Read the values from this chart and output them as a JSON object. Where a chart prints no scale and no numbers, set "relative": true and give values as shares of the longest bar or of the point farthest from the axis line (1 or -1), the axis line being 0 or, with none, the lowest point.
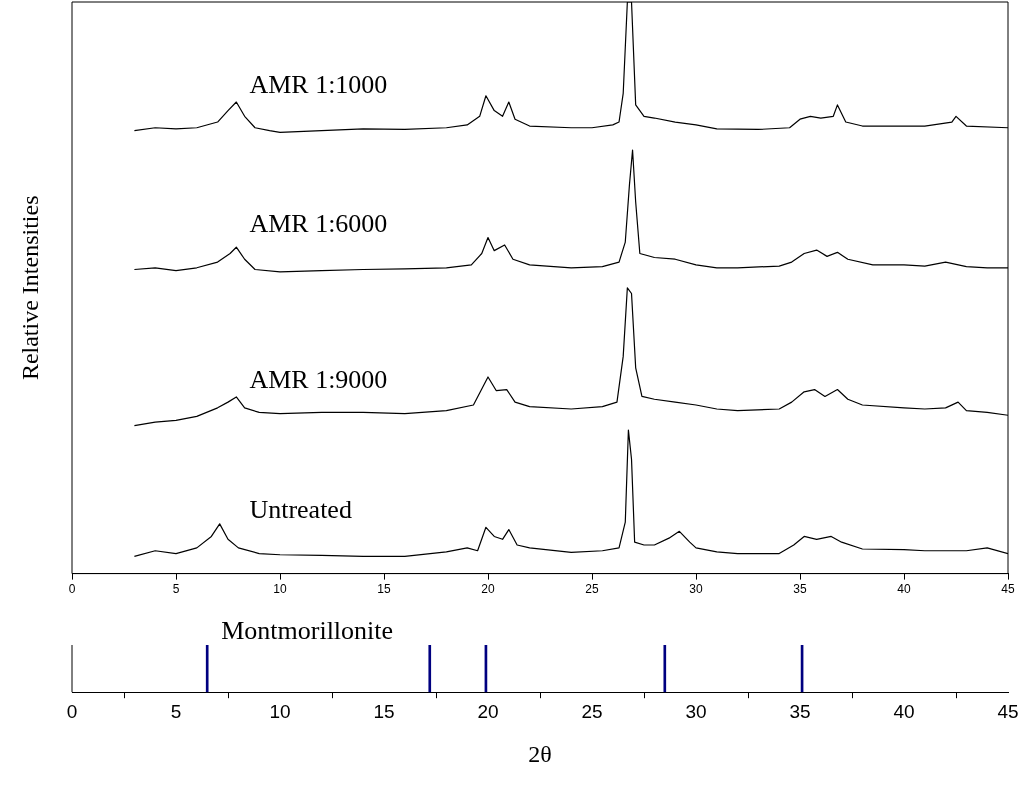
{
  "chart_data": [
    {
      "type": "line",
      "ylabel": "Relative Intensities",
      "relative": true,
      "xlim": [
        0,
        45
      ],
      "xticks": [
        0,
        5,
        10,
        15,
        20,
        25,
        30,
        35,
        40,
        45
      ],
      "grid": false,
      "legend": false,
      "line_style": "solid",
      "series": [
        {
          "name": "AMR 1:1000",
          "color": "#000000",
          "x": [
            3,
            4,
            5,
            6,
            7,
            7.5,
            7.9,
            8.3,
            8.8,
            9.5,
            10,
            12,
            14,
            16,
            18,
            19,
            19.6,
            19.9,
            20.3,
            20.7,
            21,
            21.3,
            22,
            24,
            25,
            26,
            26.3,
            26.5,
            26.7,
            26.9,
            27.1,
            27.5,
            28,
            29,
            30,
            31,
            33,
            34.5,
            35,
            35.5,
            36,
            36.6,
            36.8,
            37.2,
            38,
            40,
            41,
            42.3,
            42.5,
            43,
            45
          ],
          "values": [
            0.775,
            0.78,
            0.778,
            0.78,
            0.79,
            0.81,
            0.825,
            0.8,
            0.78,
            0.775,
            0.772,
            0.775,
            0.778,
            0.777,
            0.78,
            0.785,
            0.8,
            0.836,
            0.81,
            0.8,
            0.825,
            0.795,
            0.783,
            0.78,
            0.78,
            0.785,
            0.79,
            0.84,
            1.0,
            1.0,
            0.82,
            0.8,
            0.797,
            0.79,
            0.785,
            0.778,
            0.777,
            0.78,
            0.795,
            0.8,
            0.797,
            0.8,
            0.82,
            0.79,
            0.783,
            0.783,
            0.783,
            0.79,
            0.8,
            0.783,
            0.78
          ]
        },
        {
          "name": "AMR 1:6000",
          "color": "#000000",
          "x": [
            3,
            4,
            5,
            6,
            7,
            7.6,
            7.9,
            8.3,
            8.8,
            10,
            12,
            14,
            16,
            18,
            19.2,
            19.7,
            20,
            20.3,
            20.8,
            21.2,
            22,
            24,
            25.5,
            26.3,
            26.6,
            26.8,
            26.95,
            27.1,
            27.3,
            28,
            29,
            30,
            31,
            32,
            34,
            34.6,
            35.2,
            35.8,
            36.3,
            36.8,
            37.3,
            38.5,
            40,
            41,
            42,
            43,
            44,
            45
          ],
          "values": [
            0.532,
            0.535,
            0.53,
            0.535,
            0.545,
            0.56,
            0.571,
            0.55,
            0.532,
            0.528,
            0.53,
            0.532,
            0.533,
            0.535,
            0.54,
            0.56,
            0.588,
            0.565,
            0.575,
            0.55,
            0.54,
            0.535,
            0.537,
            0.545,
            0.58,
            0.68,
            0.741,
            0.65,
            0.56,
            0.553,
            0.55,
            0.54,
            0.535,
            0.535,
            0.538,
            0.545,
            0.56,
            0.566,
            0.555,
            0.562,
            0.55,
            0.54,
            0.54,
            0.538,
            0.545,
            0.537,
            0.535,
            0.535
          ]
        },
        {
          "name": "AMR 1:9000",
          "color": "#000000",
          "x": [
            3,
            4,
            5,
            6,
            7,
            7.5,
            7.9,
            8.3,
            9,
            10,
            12,
            14,
            16,
            18,
            19.3,
            19.8,
            20,
            20.4,
            20.9,
            21.3,
            22,
            24,
            25.5,
            26.2,
            26.5,
            26.7,
            26.9,
            27.1,
            27.4,
            28,
            29,
            30,
            31,
            32,
            34,
            34.6,
            35.2,
            35.7,
            36.2,
            36.8,
            37.3,
            38,
            40,
            41,
            42,
            42.6,
            43,
            44,
            45
          ],
          "values": [
            0.259,
            0.265,
            0.268,
            0.275,
            0.29,
            0.3,
            0.309,
            0.29,
            0.282,
            0.28,
            0.282,
            0.282,
            0.28,
            0.285,
            0.295,
            0.33,
            0.344,
            0.32,
            0.322,
            0.3,
            0.292,
            0.288,
            0.292,
            0.3,
            0.38,
            0.5,
            0.49,
            0.36,
            0.31,
            0.305,
            0.3,
            0.295,
            0.288,
            0.285,
            0.288,
            0.3,
            0.318,
            0.322,
            0.31,
            0.322,
            0.305,
            0.295,
            0.29,
            0.288,
            0.29,
            0.3,
            0.285,
            0.282,
            0.277
          ]
        },
        {
          "name": "Untreated",
          "color": "#000000",
          "x": [
            3,
            4,
            5,
            6,
            6.7,
            7.1,
            7.5,
            8,
            9,
            10,
            12,
            14,
            16,
            18,
            19,
            19.5,
            19.9,
            20.3,
            20.7,
            21,
            21.4,
            22,
            24,
            25.5,
            26.3,
            26.6,
            26.75,
            26.9,
            27.05,
            27.5,
            28,
            28.7,
            29.2,
            29.7,
            30,
            31,
            32,
            34,
            34.7,
            35.2,
            35.8,
            36.5,
            37,
            38,
            40,
            41,
            42,
            43,
            44,
            45
          ],
          "values": [
            0.03,
            0.04,
            0.035,
            0.045,
            0.065,
            0.087,
            0.06,
            0.045,
            0.035,
            0.033,
            0.032,
            0.03,
            0.03,
            0.038,
            0.045,
            0.04,
            0.081,
            0.065,
            0.06,
            0.077,
            0.05,
            0.045,
            0.037,
            0.04,
            0.045,
            0.09,
            0.251,
            0.2,
            0.055,
            0.05,
            0.05,
            0.062,
            0.074,
            0.055,
            0.045,
            0.038,
            0.035,
            0.035,
            0.05,
            0.065,
            0.06,
            0.065,
            0.055,
            0.043,
            0.042,
            0.04,
            0.04,
            0.04,
            0.045,
            0.035
          ]
        }
      ]
    },
    {
      "type": "bar",
      "xlabel": "2θ",
      "relative": true,
      "xlim": [
        0,
        45
      ],
      "xticks": [
        0,
        5,
        10,
        15,
        20,
        25,
        30,
        35,
        40,
        45
      ],
      "grid": false,
      "legend": false,
      "series": [
        {
          "name": "Montmorillonite",
          "color": "#000080",
          "x": [
            6.5,
            17.2,
            19.9,
            28.5,
            35.1
          ],
          "values": [
            1,
            1,
            1,
            1,
            1
          ]
        }
      ]
    }
  ]
}
